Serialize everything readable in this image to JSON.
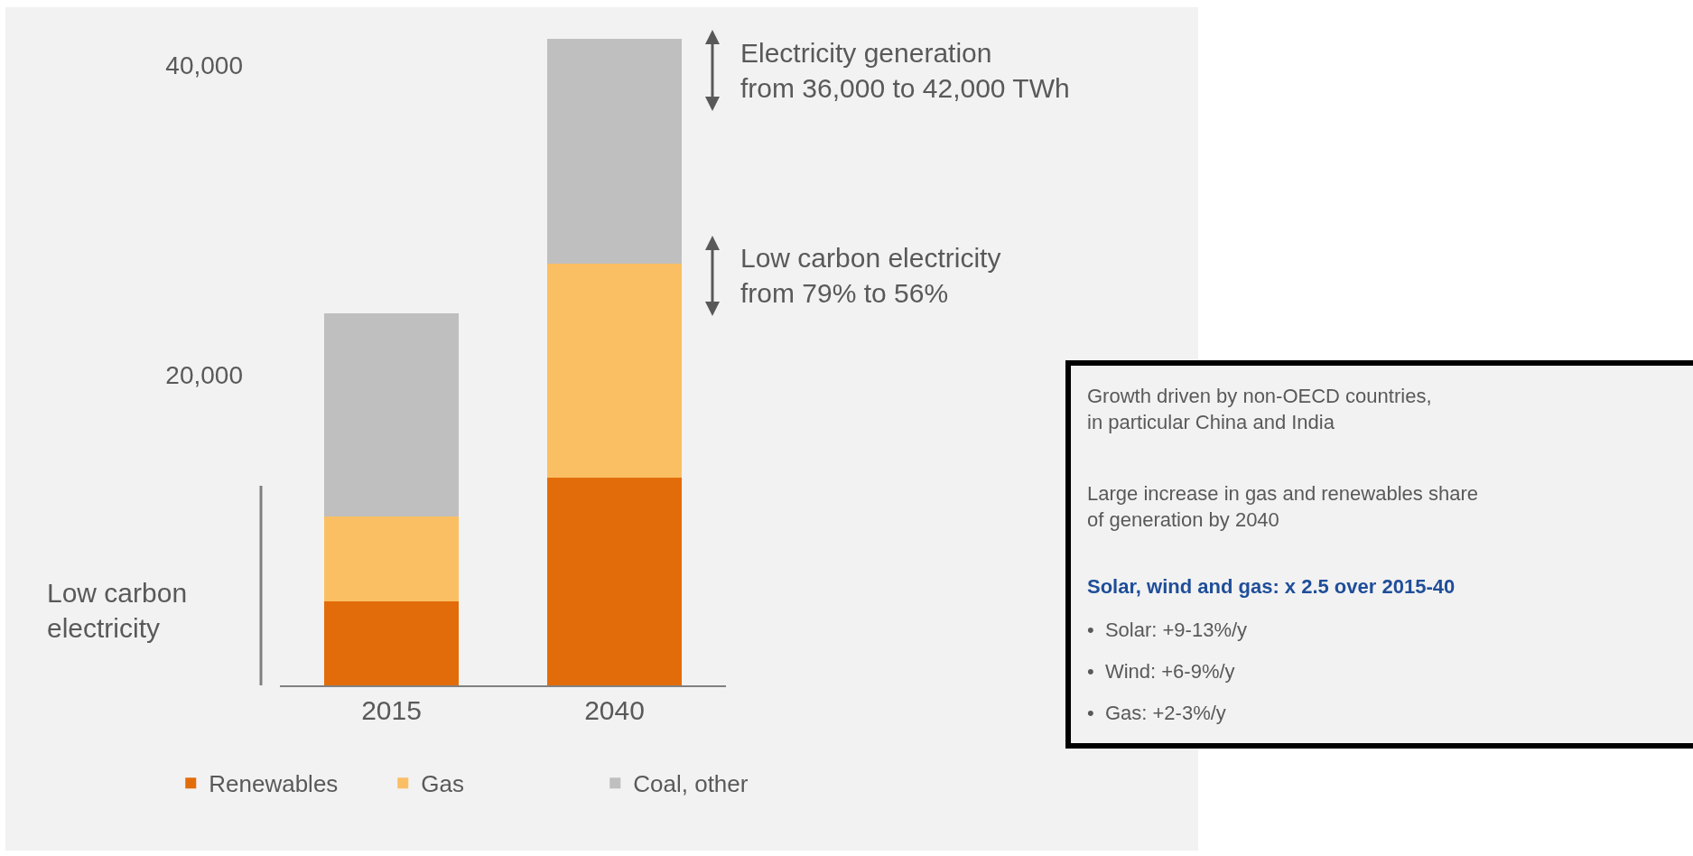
{
  "chart_data": {
    "type": "bar",
    "stacked": true,
    "categories": [
      "2015",
      "2040"
    ],
    "series": [
      {
        "name": "Renewables",
        "color": "#e36c0a",
        "values": [
          5400,
          13400
        ]
      },
      {
        "name": "Gas",
        "color": "#fbbf63",
        "values": [
          5500,
          13800
        ]
      },
      {
        "name": "Coal, other",
        "color": "#bfbfbf",
        "values": [
          13100,
          14500
        ]
      }
    ],
    "ylim": [
      0,
      42000
    ],
    "yticks": [
      {
        "value": 20000,
        "label": "20,000"
      },
      {
        "value": 40000,
        "label": "40,000"
      }
    ],
    "grid": false,
    "legend": "bottom",
    "annotations": [
      "Electricity generation\nfrom 36,000 to 42,000 TWh",
      "Low carbon electricity\nfrom 79% to 56%",
      "Low carbon\nelectricity",
      "Growth driven by non-OECD countries,\nin particular China and India",
      "Large increase in gas and renewables share\nof generation by 2040",
      "Solar, wind and gas: x 2.5 over 2015-40",
      "•  Solar: +9-13%/y",
      "•  Wind: +6-9%/y",
      "•  Gas: +2-3%/y"
    ]
  }
}
